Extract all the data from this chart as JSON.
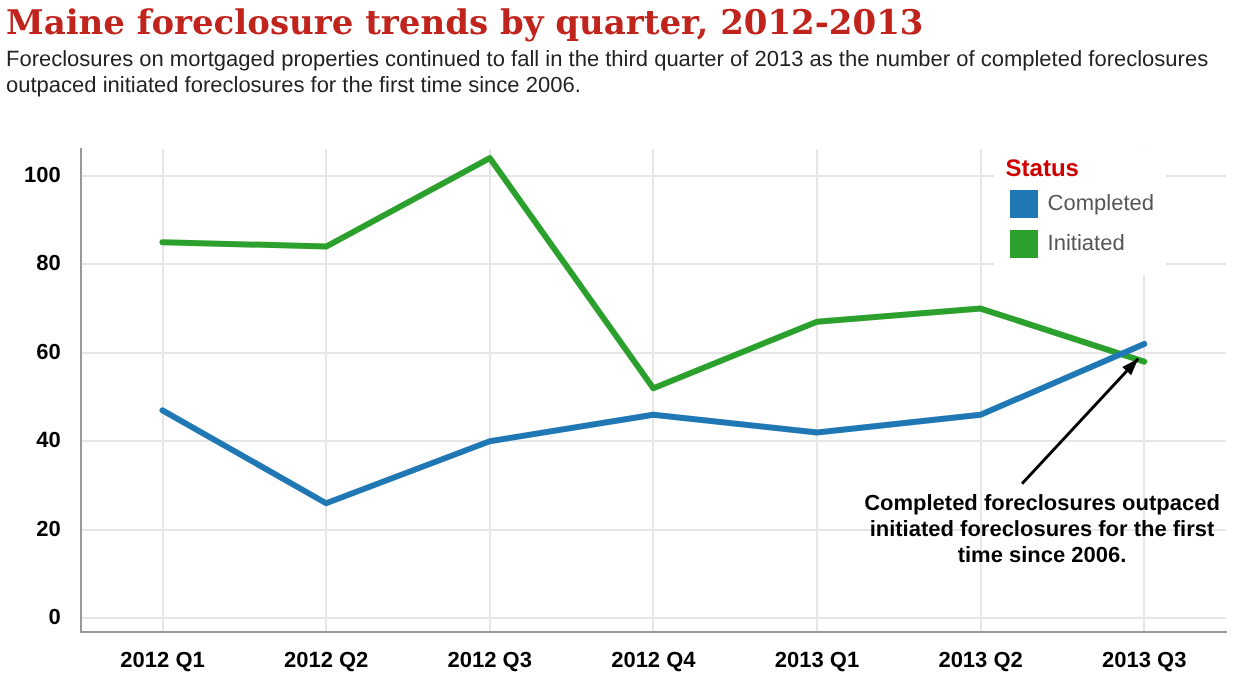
{
  "chart_data": {
    "type": "line",
    "title": "Maine foreclosure trends by quarter, 2012-2013",
    "subtitle": "Foreclosures on mortgaged properties continued to fall in the third quarter of 2013 as the number of completed foreclosures outpaced initiated foreclosures for the first time since 2006.",
    "categories": [
      "2012 Q1",
      "2012 Q2",
      "2012 Q3",
      "2012 Q4",
      "2013 Q1",
      "2013 Q2",
      "2013 Q3"
    ],
    "series": [
      {
        "name": "Completed",
        "color": "#1f77b4",
        "values": [
          47,
          26,
          40,
          46,
          42,
          46,
          62
        ]
      },
      {
        "name": "Initiated",
        "color": "#2ca02c",
        "values": [
          85,
          84,
          104,
          52,
          67,
          70,
          58
        ]
      }
    ],
    "ylim": [
      -3,
      106
    ],
    "yticks": [
      0,
      20,
      40,
      60,
      80,
      100
    ],
    "grid": true,
    "legend": "top right",
    "legend_title": "Status",
    "marker": "none",
    "line_style": "solid",
    "annotations": [
      {
        "text": "Completed foreclosures outpaced initiated foreclosures for the first time since 2006.",
        "x": "2013 Q3",
        "y": 60
      }
    ]
  }
}
